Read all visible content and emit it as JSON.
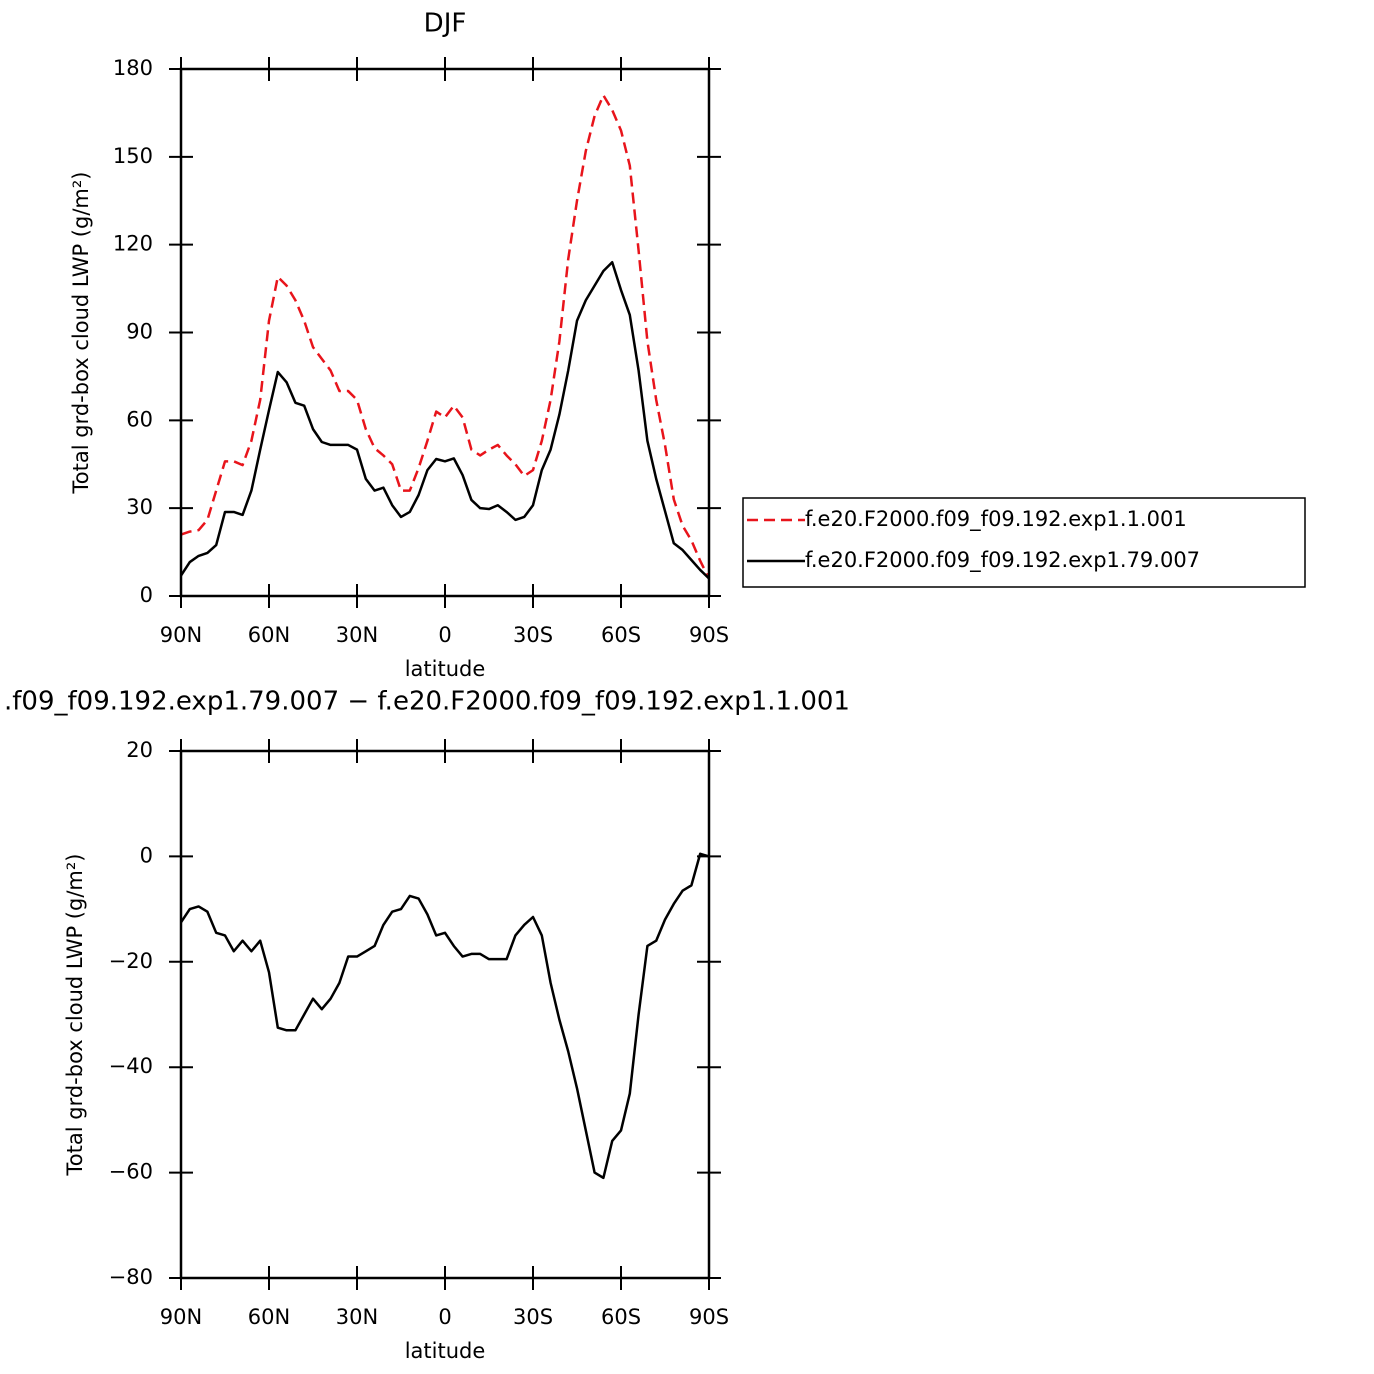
{
  "chart_data": [
    {
      "type": "line",
      "title": "DJF",
      "ylabel": "Total grd-box cloud LWP (g/m²)",
      "xlabel": "latitude",
      "x": [
        90,
        87,
        84,
        81,
        78,
        75,
        72,
        69,
        66,
        63,
        60,
        57,
        54,
        51,
        48,
        45,
        42,
        39,
        36,
        33,
        30,
        27,
        24,
        21,
        18,
        15,
        12,
        9,
        6,
        3,
        0,
        -3,
        -6,
        -9,
        -12,
        -15,
        -18,
        -21,
        -24,
        -27,
        -30,
        -33,
        -36,
        -39,
        -42,
        -45,
        -48,
        -51,
        -54,
        -57,
        -60,
        -63,
        -66,
        -69,
        -72,
        -75,
        -78,
        -81,
        -84,
        -87,
        -90
      ],
      "xlim": [
        90,
        -90
      ],
      "xticks": [
        {
          "value": 90,
          "label": "90N"
        },
        {
          "value": 60,
          "label": "60N"
        },
        {
          "value": 30,
          "label": "30N"
        },
        0,
        {
          "value": -30,
          "label": "30S"
        },
        {
          "value": -60,
          "label": "60S"
        },
        {
          "value": -90,
          "label": "90S"
        }
      ],
      "ylim": [
        0,
        180
      ],
      "yticks": [
        0,
        30,
        60,
        90,
        120,
        150,
        180
      ],
      "legend": "outside-right",
      "series": [
        {
          "name": "f.e20.F2000.f09_f09.192.exp1.1.001",
          "color": "#e8141b",
          "style": "dashed",
          "values": [
            21,
            22,
            22.5,
            26,
            36,
            46,
            46,
            44.7,
            53,
            67,
            94,
            109,
            106,
            101,
            94,
            85,
            81,
            77,
            70,
            70,
            67,
            57,
            50.5,
            48,
            45,
            36,
            36,
            43.7,
            53,
            63,
            61,
            65,
            61,
            50,
            48,
            50,
            51.6,
            48,
            45,
            41,
            43,
            53,
            67,
            87,
            115,
            135,
            152,
            164,
            171,
            166,
            159,
            147,
            118,
            87,
            67,
            51.6,
            33,
            24,
            19,
            12,
            6
          ]
        },
        {
          "name": "f.e20.F2000.f09_f09.192.exp1.79.007",
          "color": "#000000",
          "style": "solid",
          "values": [
            7,
            11.6,
            13.7,
            14.7,
            17.4,
            28.7,
            28.7,
            27.7,
            36,
            50,
            63.5,
            76.5,
            73,
            66,
            65,
            57,
            52.6,
            51.6,
            51.6,
            51.6,
            50,
            40,
            36,
            37,
            31,
            27,
            28.7,
            34.5,
            43,
            46.8,
            46,
            47,
            41.3,
            32.8,
            30,
            29.7,
            31,
            28.7,
            26,
            27,
            31,
            43,
            50,
            62,
            77,
            94,
            101,
            106,
            111,
            114,
            104.5,
            96,
            77,
            53,
            40,
            29,
            18,
            15.7,
            12.3,
            8.9,
            6
          ]
        }
      ]
    },
    {
      "type": "line",
      "title": ".f09_f09.192.exp1.79.007 − f.e20.F2000.f09_f09.192.exp1.1.001",
      "ylabel": "Total grd-box cloud LWP (g/m²)",
      "xlabel": "latitude",
      "x": [
        90,
        87,
        84,
        81,
        78,
        75,
        72,
        69,
        66,
        63,
        60,
        57,
        54,
        51,
        48,
        45,
        42,
        39,
        36,
        33,
        30,
        27,
        24,
        21,
        18,
        15,
        12,
        9,
        6,
        3,
        0,
        -3,
        -6,
        -9,
        -12,
        -15,
        -18,
        -21,
        -24,
        -27,
        -30,
        -33,
        -36,
        -39,
        -42,
        -45,
        -48,
        -51,
        -54,
        -57,
        -60,
        -63,
        -66,
        -69,
        -72,
        -75,
        -78,
        -81,
        -84,
        -87,
        -90
      ],
      "xlim": [
        90,
        -90
      ],
      "xticks": [
        {
          "value": 90,
          "label": "90N"
        },
        {
          "value": 60,
          "label": "60N"
        },
        {
          "value": 30,
          "label": "30N"
        },
        0,
        {
          "value": -30,
          "label": "30S"
        },
        {
          "value": -60,
          "label": "60S"
        },
        {
          "value": -90,
          "label": "90S"
        }
      ],
      "ylim": [
        -80,
        20
      ],
      "yticks": [
        {
          "value": -80,
          "label": "−80"
        },
        {
          "value": -60,
          "label": "−60"
        },
        {
          "value": -40,
          "label": "−40"
        },
        {
          "value": -20,
          "label": "−20"
        },
        0,
        20
      ],
      "series": [
        {
          "color": "#000000",
          "style": "solid",
          "values": [
            -12.5,
            -10,
            -9.5,
            -10.5,
            -14.5,
            -15,
            -18,
            -16,
            -18,
            -16,
            -22,
            -32.5,
            -33,
            -33,
            -30,
            -27,
            -29,
            -27,
            -24,
            -19,
            -19,
            -18,
            -17,
            -13,
            -10.5,
            -10,
            -7.5,
            -8,
            -11,
            -15,
            -14.5,
            -17,
            -19,
            -18.5,
            -18.5,
            -19.5,
            -19.5,
            -19.5,
            -15,
            -13,
            -11.5,
            -15,
            -24,
            -31,
            -37,
            -44,
            -52,
            -60,
            -61,
            -54,
            -52,
            -45,
            -30,
            -17,
            -16,
            -12,
            -9,
            -6.5,
            -5.5,
            0.5,
            0
          ]
        }
      ]
    }
  ]
}
